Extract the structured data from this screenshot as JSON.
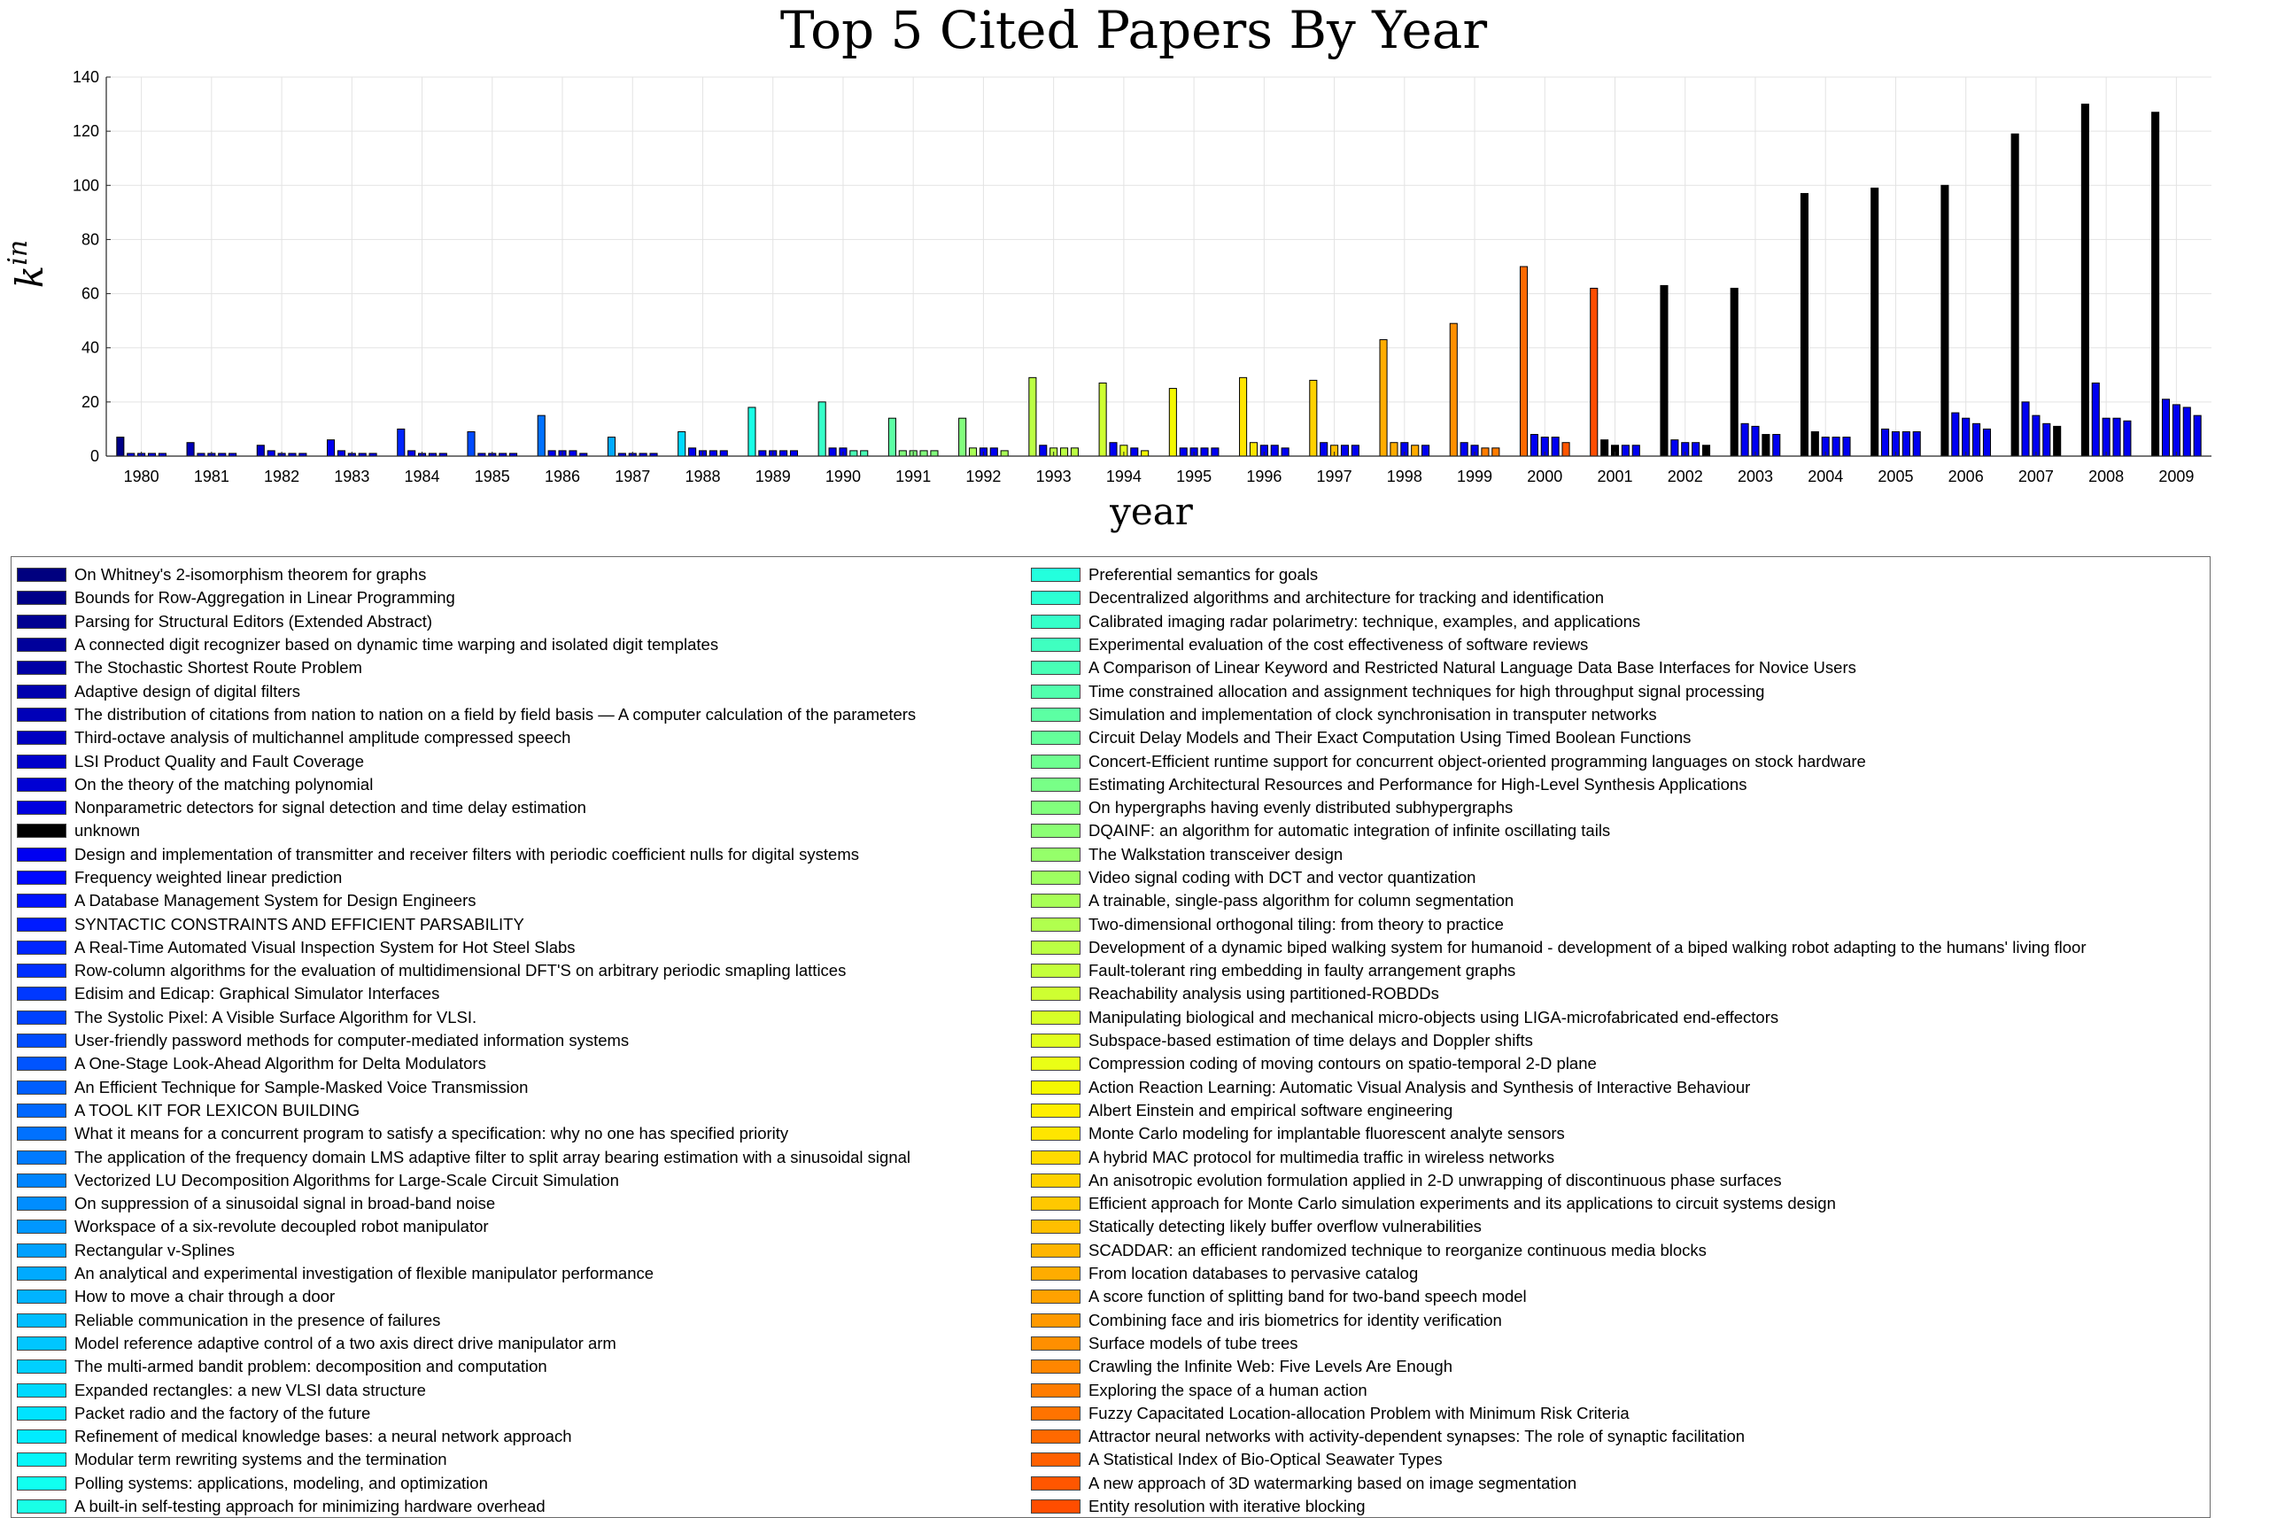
{
  "chart_data": {
    "type": "bar",
    "title": "Top 5 Cited Papers By Year",
    "xlabel": "year",
    "ylabel": "k^in",
    "ylim": [
      0,
      140
    ],
    "yticks": [
      0,
      20,
      40,
      60,
      80,
      100,
      120,
      140
    ],
    "grid": true,
    "legend_position": "bottom",
    "categories": [
      "1980",
      "1981",
      "1982",
      "1983",
      "1984",
      "1985",
      "1986",
      "1987",
      "1988",
      "1989",
      "1990",
      "1991",
      "1992",
      "1993",
      "1994",
      "1995",
      "1996",
      "1997",
      "1998",
      "1999",
      "2000",
      "2001",
      "2002",
      "2003",
      "2004",
      "2005",
      "2006",
      "2007",
      "2008",
      "2009"
    ],
    "groups": [
      {
        "values": [
          7,
          1,
          1,
          1,
          1
        ],
        "colors": [
          2,
          13,
          13,
          13,
          13
        ]
      },
      {
        "values": [
          5,
          1,
          1,
          1,
          1
        ],
        "colors": [
          7,
          13,
          13,
          13,
          13
        ]
      },
      {
        "values": [
          4,
          2,
          1,
          1,
          1
        ],
        "colors": [
          9,
          13,
          13,
          13,
          13
        ]
      },
      {
        "values": [
          6,
          2,
          1,
          1,
          1
        ],
        "colors": [
          13,
          13,
          13,
          13,
          13
        ]
      },
      {
        "values": [
          10,
          2,
          1,
          1,
          1
        ],
        "colors": [
          17,
          13,
          13,
          13,
          13
        ]
      },
      {
        "values": [
          9,
          1,
          1,
          1,
          1
        ],
        "colors": [
          21,
          13,
          13,
          13,
          13
        ]
      },
      {
        "values": [
          15,
          2,
          2,
          2,
          1
        ],
        "colors": [
          25,
          13,
          13,
          13,
          13
        ]
      },
      {
        "values": [
          7,
          1,
          1,
          1,
          1
        ],
        "colors": [
          31,
          13,
          13,
          13,
          13
        ]
      },
      {
        "values": [
          9,
          3,
          2,
          2,
          2
        ],
        "colors": [
          36,
          13,
          13,
          13,
          13
        ]
      },
      {
        "values": [
          18,
          2,
          2,
          2,
          2
        ],
        "colors": [
          41,
          13,
          13,
          13,
          13
        ]
      },
      {
        "values": [
          20,
          3,
          3,
          2,
          2
        ],
        "colors": [
          44,
          13,
          13,
          46,
          46
        ]
      },
      {
        "values": [
          14,
          2,
          2,
          2,
          2
        ],
        "colors": [
          48,
          52,
          52,
          52,
          52
        ]
      },
      {
        "values": [
          14,
          3,
          3,
          3,
          2
        ],
        "colors": [
          52,
          56,
          13,
          13,
          56
        ]
      },
      {
        "values": [
          29,
          4,
          3,
          3,
          3
        ],
        "colors": [
          58,
          13,
          58,
          58,
          58
        ]
      },
      {
        "values": [
          27,
          5,
          4,
          3,
          2
        ],
        "colors": [
          60,
          13,
          62,
          13,
          64
        ]
      },
      {
        "values": [
          25,
          3,
          3,
          3,
          3
        ],
        "colors": [
          64,
          13,
          13,
          13,
          13
        ]
      },
      {
        "values": [
          29,
          5,
          4,
          4,
          3
        ],
        "colors": [
          66,
          66,
          13,
          13,
          13
        ]
      },
      {
        "values": [
          28,
          5,
          4,
          4,
          4
        ],
        "colors": [
          68,
          13,
          70,
          13,
          13
        ]
      },
      {
        "values": [
          43,
          5,
          5,
          4,
          4
        ],
        "colors": [
          72,
          72,
          13,
          72,
          13
        ]
      },
      {
        "values": [
          49,
          5,
          4,
          3,
          3
        ],
        "colors": [
          75,
          13,
          13,
          77,
          77
        ]
      },
      {
        "values": [
          70,
          8,
          7,
          7,
          5
        ],
        "colors": [
          79,
          13,
          13,
          13,
          81
        ]
      },
      {
        "values": [
          62,
          6,
          4,
          4,
          4
        ],
        "colors": [
          82,
          84,
          84,
          13,
          13
        ]
      },
      {
        "values": [
          63,
          6,
          5,
          5,
          4
        ],
        "colors": [
          86,
          13,
          13,
          13,
          86
        ]
      },
      {
        "values": [
          62,
          12,
          11,
          8,
          8
        ],
        "colors": [
          88,
          13,
          13,
          88,
          13
        ]
      },
      {
        "values": [
          97,
          9,
          7,
          7,
          7
        ],
        "colors": [
          90,
          90,
          13,
          13,
          13
        ]
      },
      {
        "values": [
          99,
          10,
          9,
          9,
          9
        ],
        "colors": [
          92,
          13,
          13,
          13,
          13
        ]
      },
      {
        "values": [
          100,
          16,
          14,
          12,
          10
        ],
        "colors": [
          93,
          13,
          13,
          13,
          13
        ]
      },
      {
        "values": [
          119,
          20,
          15,
          12,
          11
        ],
        "colors": [
          94,
          13,
          13,
          13,
          94
        ]
      },
      {
        "values": [
          130,
          27,
          14,
          14,
          13
        ],
        "colors": [
          96,
          13,
          13,
          13,
          13
        ]
      },
      {
        "values": [
          127,
          21,
          19,
          18,
          15
        ],
        "colors": [
          97,
          13,
          13,
          13,
          13
        ]
      }
    ],
    "legend_left": [
      {
        "label": "On Whitney's 2-isomorphism theorem for graphs",
        "color": "#00007f"
      },
      {
        "label": "Bounds for Row-Aggregation in Linear Programming",
        "color": "#000088"
      },
      {
        "label": "Parsing for Structural Editors (Extended Abstract)",
        "color": "#000092"
      },
      {
        "label": "A connected digit recognizer based on dynamic time warping and isolated digit templates",
        "color": "#00009b"
      },
      {
        "label": "The Stochastic Shortest Route Problem",
        "color": "#0000a5"
      },
      {
        "label": "Adaptive design of digital filters",
        "color": "#0000ae"
      },
      {
        "label": "The distribution of citations from nation to nation on a field by field basis — A computer calculation of the parameters",
        "color": "#0000b8"
      },
      {
        "label": "Third-octave analysis of multichannel amplitude compressed speech",
        "color": "#0000c1"
      },
      {
        "label": "LSI Product Quality and Fault Coverage",
        "color": "#0000cb"
      },
      {
        "label": "On the theory of the matching polynomial",
        "color": "#0000d4"
      },
      {
        "label": "Nonparametric detectors for signal detection and time delay estimation",
        "color": "#0000de"
      },
      {
        "label": "unknown",
        "color": "#000000"
      },
      {
        "label": "Design and implementation of transmitter and receiver filters with periodic coefficient nulls for digital systems",
        "color": "#0000f1"
      },
      {
        "label": "Frequency weighted linear prediction",
        "color": "#0008ff"
      },
      {
        "label": "A Database Management System for Design Engineers",
        "color": "#0012ff"
      },
      {
        "label": "SYNTACTIC CONSTRAINTS AND EFFICIENT PARSABILITY",
        "color": "#001bff"
      },
      {
        "label": "A Real-Time Automated Visual Inspection System for Hot Steel Slabs",
        "color": "#0025ff"
      },
      {
        "label": "Row-column algorithms for the evaluation of multidimensional DFT'S on arbitrary periodic smapling lattices",
        "color": "#002eff"
      },
      {
        "label": "Edisim and Edicap: Graphical Simulator Interfaces",
        "color": "#0038ff"
      },
      {
        "label": "The Systolic Pixel: A Visible Surface Algorithm for VLSI.",
        "color": "#0041ff"
      },
      {
        "label": "User-friendly password methods for computer-mediated information systems",
        "color": "#004bff"
      },
      {
        "label": "A One-Stage Look-Ahead Algorithm for Delta Modulators",
        "color": "#0054ff"
      },
      {
        "label": "An Efficient Technique for Sample-Masked Voice Transmission",
        "color": "#005eff"
      },
      {
        "label": "A TOOL KIT FOR LEXICON BUILDING",
        "color": "#0067ff"
      },
      {
        "label": "What it means for a concurrent program to satisfy a specification: why no one has specified priority",
        "color": "#0071ff"
      },
      {
        "label": "The application of the frequency domain LMS adaptive filter to split array bearing estimation with a sinusoidal signal",
        "color": "#007aff"
      },
      {
        "label": "Vectorized LU Decomposition Algorithms for Large-Scale Circuit Simulation",
        "color": "#0084ff"
      },
      {
        "label": "On suppression of a sinusoidal signal in broad-band noise",
        "color": "#008dff"
      },
      {
        "label": "Workspace of a six-revolute decoupled robot manipulator",
        "color": "#0097ff"
      },
      {
        "label": "Rectangular v-Splines",
        "color": "#00a0ff"
      },
      {
        "label": "An analytical and experimental investigation of flexible manipulator performance",
        "color": "#00aaff"
      },
      {
        "label": "How to move a chair through a door",
        "color": "#00b3ff"
      },
      {
        "label": "Reliable communication in the presence of failures",
        "color": "#00bdff"
      },
      {
        "label": "Model reference adaptive control of a two axis direct drive manipulator arm",
        "color": "#00c6ff"
      },
      {
        "label": "The multi-armed bandit problem: decomposition and computation",
        "color": "#00d0ff"
      },
      {
        "label": "Expanded rectangles: a new VLSI data structure",
        "color": "#00d9ff"
      },
      {
        "label": "Packet radio and the factory of the future",
        "color": "#00e3ff"
      },
      {
        "label": "Refinement of medical knowledge bases: a neural network approach",
        "color": "#00ecff"
      },
      {
        "label": "Modular term rewriting systems and the termination",
        "color": "#06f6f9"
      },
      {
        "label": "Polling systems: applications, modeling, and optimization",
        "color": "#10fff0"
      },
      {
        "label": "A built-in self-testing approach for minimizing hardware overhead",
        "color": "#19ffe6"
      }
    ],
    "legend_right": [
      {
        "label": "Preferential semantics for goals",
        "color": "#23ffdd"
      },
      {
        "label": "Decentralized algorithms and architecture for tracking and identification",
        "color": "#2cffd3"
      },
      {
        "label": "Calibrated imaging radar polarimetry: technique, examples, and applications",
        "color": "#36ffc9"
      },
      {
        "label": "Experimental evaluation of the cost effectiveness of software reviews",
        "color": "#3fffc0"
      },
      {
        "label": "A Comparison of Linear Keyword and Restricted Natural Language Data Base Interfaces for Novice Users",
        "color": "#49ffb6"
      },
      {
        "label": "Time constrained allocation and assignment techniques for high throughput signal processing",
        "color": "#52ffad"
      },
      {
        "label": "Simulation and implementation of clock synchronisation in transputer networks",
        "color": "#5cffa3"
      },
      {
        "label": "Circuit Delay Models and Their Exact Computation Using Timed Boolean Functions",
        "color": "#65ff9a"
      },
      {
        "label": "Concert-Efficient runtime support for concurrent object-oriented programming languages on stock hardware",
        "color": "#6fff90"
      },
      {
        "label": "Estimating Architectural Resources and Performance for High-Level Synthesis Applications",
        "color": "#78ff87"
      },
      {
        "label": "On hypergraphs having evenly distributed subhypergraphs",
        "color": "#82ff7d"
      },
      {
        "label": "DQAINF: an algorithm for automatic integration of infinite oscillating tails",
        "color": "#8bff74"
      },
      {
        "label": "The Walkstation transceiver design",
        "color": "#95ff6a"
      },
      {
        "label": "Video signal coding with DCT and vector quantization",
        "color": "#9eff61"
      },
      {
        "label": "A trainable, single-pass algorithm for column segmentation",
        "color": "#a8ff57"
      },
      {
        "label": "Two-dimensional orthogonal tiling: from theory to practice",
        "color": "#b1ff4e"
      },
      {
        "label": "Development of a dynamic biped walking system for humanoid - development of a biped walking robot adapting to the humans' living floor",
        "color": "#bbff44"
      },
      {
        "label": "Fault-tolerant ring embedding in faulty arrangement graphs",
        "color": "#c4ff3b"
      },
      {
        "label": "Reachability analysis using partitioned-ROBDDs",
        "color": "#ceff31"
      },
      {
        "label": "Manipulating biological and mechanical micro-objects using LIGA-microfabricated end-effectors",
        "color": "#d7ff28"
      },
      {
        "label": "Subspace-based estimation of time delays and Doppler shifts",
        "color": "#e1ff1e"
      },
      {
        "label": "Compression coding of moving contours on spatio-temporal 2-D plane",
        "color": "#eaff15"
      },
      {
        "label": "Action Reaction Learning: Automatic Visual Analysis and Synthesis of Interactive Behaviour",
        "color": "#f4f802"
      },
      {
        "label": "Albert Einstein and empirical software engineering",
        "color": "#ffee00"
      },
      {
        "label": "Monte Carlo modeling for implantable fluorescent analyte sensors",
        "color": "#ffe500"
      },
      {
        "label": "A hybrid MAC protocol for multimedia traffic in wireless networks",
        "color": "#ffdb00"
      },
      {
        "label": "An anisotropic evolution formulation applied in 2-D unwrapping of discontinuous phase surfaces",
        "color": "#ffd200"
      },
      {
        "label": "Efficient approach for Monte Carlo simulation experiments and its applications to circuit systems design",
        "color": "#ffc800"
      },
      {
        "label": "Statically detecting likely buffer overflow vulnerabilities",
        "color": "#ffbf00"
      },
      {
        "label": "SCADDAR: an efficient randomized technique to reorganize continuous media blocks",
        "color": "#ffb500"
      },
      {
        "label": "From location databases to pervasive catalog",
        "color": "#ffac00"
      },
      {
        "label": "A score function of splitting band for two-band speech model",
        "color": "#ffa200"
      },
      {
        "label": "Combining face and iris biometrics for identity verification",
        "color": "#ff9900"
      },
      {
        "label": "Surface models of tube trees",
        "color": "#ff8f00"
      },
      {
        "label": "Crawling the Infinite Web: Five Levels Are Enough",
        "color": "#ff8600"
      },
      {
        "label": "Exploring the space of a human action",
        "color": "#ff7c00"
      },
      {
        "label": "Fuzzy Capacitated Location-allocation Problem with Minimum Risk Criteria",
        "color": "#ff7300"
      },
      {
        "label": "Attractor neural networks with activity-dependent synapses: The role of synaptic facilitation",
        "color": "#ff6900"
      },
      {
        "label": "A Statistical Index of Bio-Optical Seawater Types",
        "color": "#ff6000"
      },
      {
        "label": "A new approach of 3D watermarking based on image segmentation",
        "color": "#ff5600"
      },
      {
        "label": "Entity resolution with iterative blocking",
        "color": "#ff4d00"
      }
    ],
    "legend_right_overrides": {
      "note": ""
    }
  }
}
